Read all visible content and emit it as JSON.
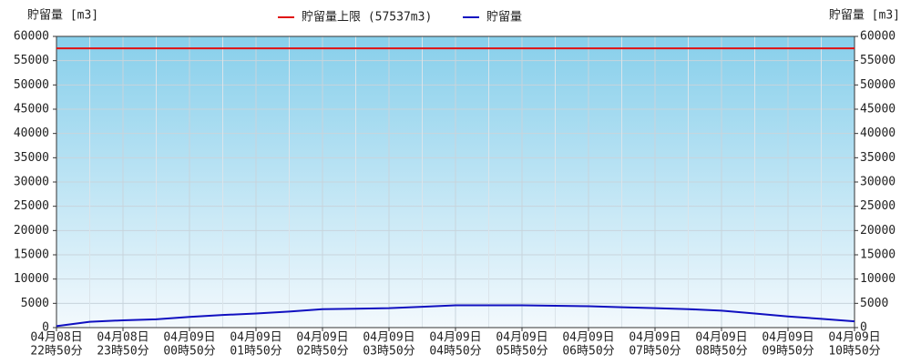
{
  "chart_data": {
    "type": "line",
    "y_label": "貯留量 [m3]",
    "y2_label": "貯留量 [m3]",
    "categories": [
      [
        "04月08日",
        "22時50分"
      ],
      null,
      [
        "04月08日",
        "23時50分"
      ],
      null,
      [
        "04月09日",
        "00時50分"
      ],
      null,
      [
        "04月09日",
        "01時50分"
      ],
      null,
      [
        "04月09日",
        "02時50分"
      ],
      null,
      [
        "04月09日",
        "03時50分"
      ],
      null,
      [
        "04月09日",
        "04時50分"
      ],
      null,
      [
        "04月09日",
        "05時50分"
      ],
      null,
      [
        "04月09日",
        "06時50分"
      ],
      null,
      [
        "04月09日",
        "07時50分"
      ],
      null,
      [
        "04月09日",
        "08時50分"
      ],
      null,
      [
        "04月09日",
        "09時50分"
      ],
      null,
      [
        "04月09日",
        "10時50分"
      ]
    ],
    "limit": {
      "name": "貯留量上限 (57537m3)",
      "color": "#e01010",
      "value": 57537
    },
    "series": [
      {
        "name": "貯留量",
        "color": "#1010c0",
        "values": [
          300,
          1200,
          1500,
          1700,
          2200,
          2600,
          2900,
          3300,
          3800,
          3900,
          4000,
          4300,
          4600,
          4600,
          4600,
          4500,
          4400,
          4200,
          4000,
          3800,
          3500,
          2900,
          2300,
          1800,
          1300
        ]
      }
    ],
    "ylim": [
      0,
      60000
    ],
    "yticks": [
      0,
      5000,
      10000,
      15000,
      20000,
      25000,
      30000,
      35000,
      40000,
      45000,
      50000,
      55000,
      60000
    ],
    "y2lim": [
      0,
      60000
    ],
    "y2ticks": [
      0,
      5000,
      10000,
      15000,
      20000,
      25000,
      30000,
      35000,
      40000,
      45000,
      50000,
      55000,
      60000
    ],
    "grid": true
  }
}
